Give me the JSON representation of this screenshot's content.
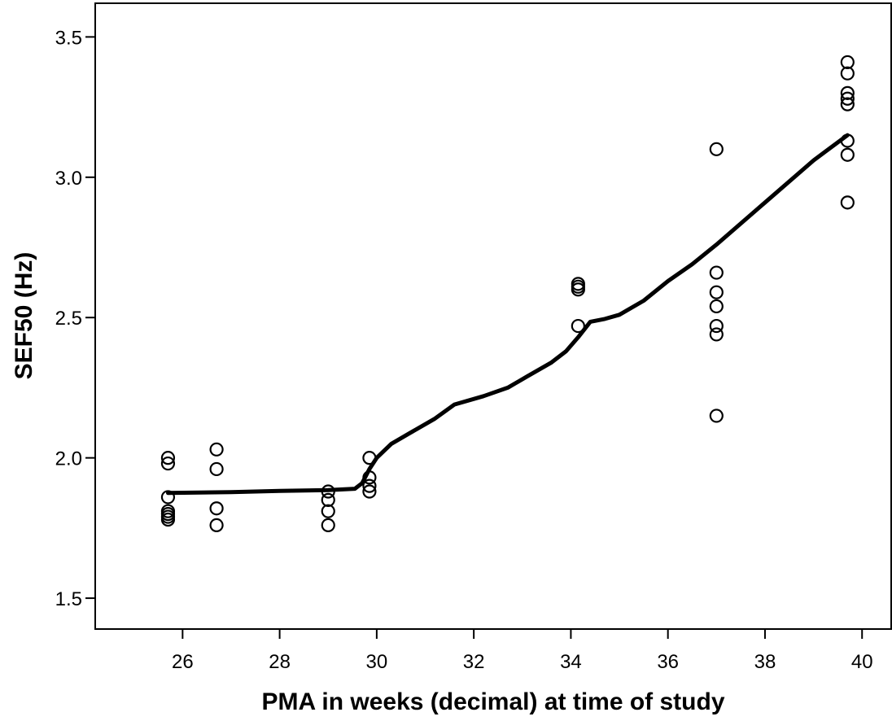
{
  "chart_data": {
    "type": "scatter",
    "title": "",
    "xlabel": "PMA in weeks (decimal) at time of study",
    "ylabel": "SEF50 (Hz)",
    "xlim": [
      24.2,
      40.6
    ],
    "ylim": [
      1.39,
      3.62
    ],
    "x_ticks": [
      26,
      28,
      30,
      32,
      34,
      36,
      38,
      40
    ],
    "x_tick_labels": [
      "26",
      "28",
      "30",
      "32",
      "34",
      "36",
      "38",
      "40"
    ],
    "y_ticks": [
      1.5,
      2.0,
      2.5,
      3.0,
      3.5
    ],
    "y_tick_labels": [
      "1.5",
      "2.0",
      "2.5",
      "3.0",
      "3.5"
    ],
    "grid": false,
    "legend": "none",
    "series": [
      {
        "kind": "points",
        "marker": "open-circle",
        "points": [
          [
            25.7,
            2.0
          ],
          [
            25.7,
            1.98
          ],
          [
            25.7,
            1.86
          ],
          [
            25.7,
            1.81
          ],
          [
            25.7,
            1.8
          ],
          [
            25.7,
            1.79
          ],
          [
            25.7,
            1.78
          ],
          [
            26.7,
            2.03
          ],
          [
            26.7,
            1.96
          ],
          [
            26.7,
            1.82
          ],
          [
            26.7,
            1.76
          ],
          [
            29.0,
            1.88
          ],
          [
            29.0,
            1.85
          ],
          [
            29.0,
            1.81
          ],
          [
            29.0,
            1.76
          ],
          [
            29.85,
            2.0
          ],
          [
            29.85,
            1.93
          ],
          [
            29.85,
            1.9
          ],
          [
            29.85,
            1.88
          ],
          [
            34.15,
            2.62
          ],
          [
            34.15,
            2.61
          ],
          [
            34.15,
            2.6
          ],
          [
            34.15,
            2.47
          ],
          [
            37.0,
            3.1
          ],
          [
            37.0,
            2.66
          ],
          [
            37.0,
            2.59
          ],
          [
            37.0,
            2.54
          ],
          [
            37.0,
            2.47
          ],
          [
            37.0,
            2.44
          ],
          [
            37.0,
            2.15
          ],
          [
            39.7,
            3.41
          ],
          [
            39.7,
            3.37
          ],
          [
            39.7,
            3.3
          ],
          [
            39.7,
            3.28
          ],
          [
            39.7,
            3.26
          ],
          [
            39.7,
            3.13
          ],
          [
            39.7,
            3.08
          ],
          [
            39.7,
            2.91
          ]
        ]
      },
      {
        "kind": "line",
        "description": "fit line",
        "points": [
          [
            25.7,
            1.875
          ],
          [
            27.0,
            1.878
          ],
          [
            28.0,
            1.882
          ],
          [
            29.0,
            1.885
          ],
          [
            29.55,
            1.89
          ],
          [
            29.7,
            1.91
          ],
          [
            29.85,
            1.96
          ],
          [
            30.0,
            2.0
          ],
          [
            30.3,
            2.05
          ],
          [
            30.7,
            2.09
          ],
          [
            31.2,
            2.14
          ],
          [
            31.6,
            2.19
          ],
          [
            32.2,
            2.22
          ],
          [
            32.7,
            2.25
          ],
          [
            33.1,
            2.29
          ],
          [
            33.6,
            2.34
          ],
          [
            33.9,
            2.38
          ],
          [
            34.15,
            2.43
          ],
          [
            34.4,
            2.485
          ],
          [
            34.7,
            2.495
          ],
          [
            35.0,
            2.51
          ],
          [
            35.5,
            2.56
          ],
          [
            36.0,
            2.63
          ],
          [
            36.5,
            2.69
          ],
          [
            37.0,
            2.76
          ],
          [
            38.0,
            2.91
          ],
          [
            39.0,
            3.06
          ],
          [
            39.7,
            3.15
          ]
        ]
      }
    ]
  }
}
